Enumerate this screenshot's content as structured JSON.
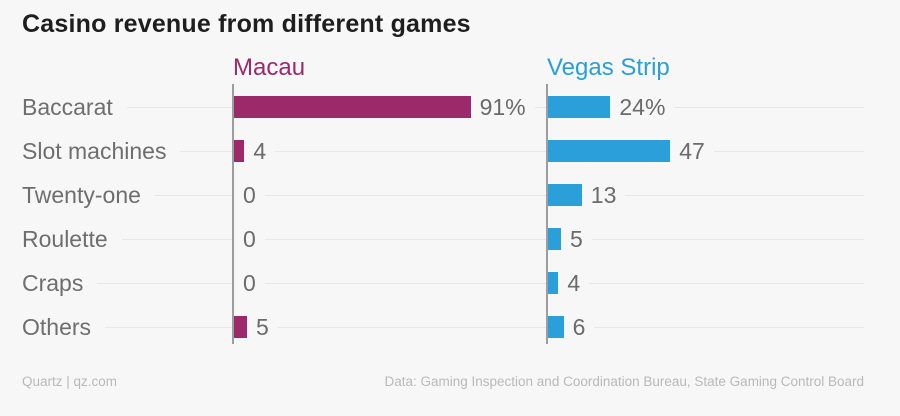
{
  "title": "Casino revenue from different games",
  "footer": {
    "source_left": "Quartz | qz.com",
    "source_right": "Data: Gaming Inspection and Coordination Bureau, State Gaming Control Board"
  },
  "colors": {
    "macau": "#9c2a6a",
    "vegas_strip": "#2b9fd9",
    "title_text": "#1e1e1e",
    "label_text": "#6e6e6e",
    "value_text": "#6b6b6b",
    "axis_line": "#9d9d9d",
    "gridline": "#e7e7e7",
    "footer_text": "#b9b9b9",
    "background": "#f7f7f7"
  },
  "chart_data": {
    "type": "bar",
    "orientation": "horizontal",
    "title": "Casino revenue from different games",
    "categories": [
      "Baccarat",
      "Slot machines",
      "Twenty-one",
      "Roulette",
      "Craps",
      "Others"
    ],
    "series": [
      {
        "name": "Macau",
        "color": "#9c2a6a",
        "values": [
          91,
          4,
          0,
          0,
          0,
          5
        ],
        "value_labels": [
          "91%",
          "4",
          "0",
          "0",
          "0",
          "5"
        ]
      },
      {
        "name": "Vegas Strip",
        "color": "#2b9fd9",
        "values": [
          24,
          47,
          13,
          5,
          4,
          6
        ],
        "value_labels": [
          "24%",
          "47",
          "13",
          "5",
          "4",
          "6"
        ]
      }
    ],
    "unit": "percent of revenue",
    "xlim": [
      0,
      100
    ],
    "grid": true,
    "legend_position": "column-headers",
    "value_labels_shown": true
  }
}
